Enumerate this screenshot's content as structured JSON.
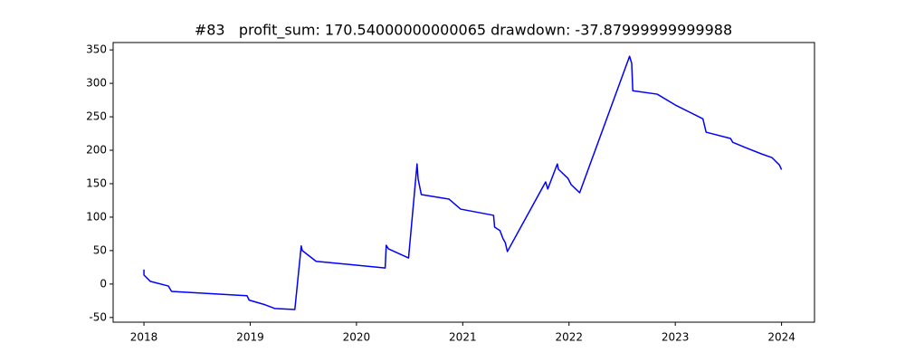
{
  "chart_data": {
    "type": "line",
    "title": "#83   profit_sum: 170.54000000000065 drawdown: -37.87999999999988",
    "x": [
      2018.0,
      2018.0,
      2018.06,
      2018.23,
      2018.26,
      2018.97,
      2018.99,
      2019.14,
      2019.23,
      2019.42,
      2019.48,
      2019.49,
      2019.62,
      2020.27,
      2020.28,
      2020.3,
      2020.49,
      2020.57,
      2020.58,
      2020.61,
      2020.87,
      2020.98,
      2021.29,
      2021.3,
      2021.35,
      2021.38,
      2021.4,
      2021.42,
      2021.78,
      2021.8,
      2021.89,
      2021.9,
      2021.99,
      2022.02,
      2022.1,
      2022.57,
      2022.59,
      2022.6,
      2022.83,
      2023.0,
      2023.26,
      2023.29,
      2023.52,
      2023.54,
      2023.66,
      2023.81,
      2023.91,
      2023.98,
      2024.0
    ],
    "series": [
      {
        "color": "#0000ff",
        "values": [
          21.6,
          13.5,
          4,
          -3,
          -11,
          -17.5,
          -24,
          -31,
          -36.5,
          -38,
          57,
          50,
          34,
          24,
          58,
          52.7,
          39,
          179.5,
          157,
          133.8,
          127,
          112,
          102.7,
          85,
          80,
          67.5,
          62,
          48.6,
          152.7,
          142,
          179.5,
          171.6,
          158,
          148.6,
          136.5,
          340.5,
          329.7,
          289,
          283.8,
          267.6,
          247,
          227,
          217.6,
          212,
          204,
          194.6,
          189,
          178,
          171
        ]
      }
    ],
    "xlim": [
      2017.71,
      2024.31
    ],
    "xticks": [
      2018,
      2019,
      2020,
      2021,
      2022,
      2023,
      2024
    ],
    "ylim": [
      -57,
      361
    ],
    "yticks": [
      -50,
      0,
      50,
      100,
      150,
      200,
      250,
      300,
      350
    ]
  }
}
